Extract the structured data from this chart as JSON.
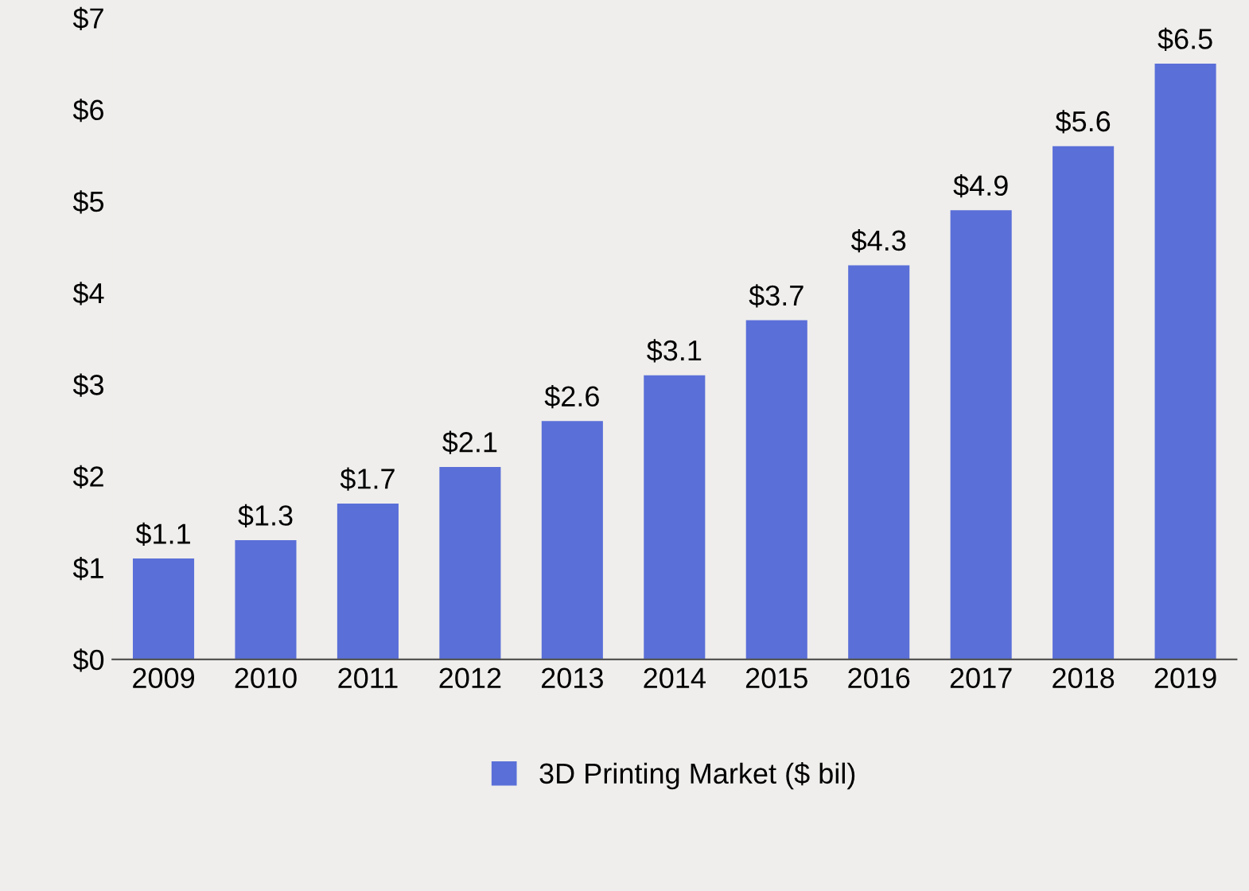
{
  "chart_data": {
    "type": "bar",
    "categories": [
      "2009",
      "2010",
      "2011",
      "2012",
      "2013",
      "2014",
      "2015",
      "2016",
      "2017",
      "2018",
      "2019"
    ],
    "series": [
      {
        "name": "3D Printing Market ($ bil)",
        "color": "#5a6fd8",
        "values": [
          1.1,
          1.3,
          1.7,
          2.1,
          2.6,
          3.1,
          3.7,
          4.3,
          4.9,
          5.6,
          6.5
        ],
        "value_labels": [
          "$1.1",
          "$1.3",
          "$1.7",
          "$2.1",
          "$2.6",
          "$3.1",
          "$3.7",
          "$4.3",
          "$4.9",
          "$5.6",
          "$6.5"
        ]
      }
    ],
    "ylim": [
      0,
      7
    ],
    "yticks": [
      {
        "value": 0,
        "label": "$0"
      },
      {
        "value": 1,
        "label": "$1"
      },
      {
        "value": 2,
        "label": "$2"
      },
      {
        "value": 3,
        "label": "$3"
      },
      {
        "value": 4,
        "label": "$4"
      },
      {
        "value": 5,
        "label": "$5"
      },
      {
        "value": 6,
        "label": "$6"
      },
      {
        "value": 7,
        "label": "$7"
      }
    ],
    "grid": false,
    "legend": "bottom"
  }
}
